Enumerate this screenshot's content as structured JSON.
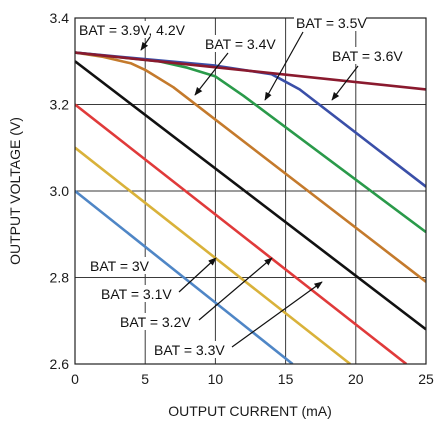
{
  "chart_data": {
    "type": "line",
    "title": "",
    "xlabel": "OUTPUT CURRENT (mA)",
    "ylabel": "OUTPUT VOLTAGE (V)",
    "xlim": [
      0,
      25
    ],
    "ylim": [
      2.6,
      3.4
    ],
    "grid": true,
    "x_ticks": [
      "0",
      "5",
      "10",
      "15",
      "20",
      "25"
    ],
    "y_ticks": [
      "2.6",
      "2.8",
      "3.0",
      "3.2",
      "3.4"
    ],
    "series": [
      {
        "name": "BAT = 3V",
        "color": "#4f86c6",
        "points": [
          [
            0,
            3.0
          ],
          [
            15.5,
            2.6
          ]
        ]
      },
      {
        "name": "BAT = 3.1V",
        "color": "#d9b23a",
        "points": [
          [
            0,
            3.1
          ],
          [
            19.6,
            2.6
          ]
        ]
      },
      {
        "name": "BAT = 3.2V",
        "color": "#e03a3a",
        "points": [
          [
            0,
            3.2
          ],
          [
            23.6,
            2.6
          ]
        ]
      },
      {
        "name": "BAT = 3.3V",
        "color": "#111111",
        "points": [
          [
            0,
            3.3
          ],
          [
            25,
            2.68
          ]
        ]
      },
      {
        "name": "BAT = 3.4V",
        "color": "#c47a2c",
        "points": [
          [
            0,
            3.32
          ],
          [
            2,
            3.31
          ],
          [
            4,
            3.295
          ],
          [
            5,
            3.28
          ],
          [
            7,
            3.24
          ],
          [
            25,
            2.79
          ]
        ]
      },
      {
        "name": "BAT = 3.5V",
        "color": "#2a9a4a",
        "points": [
          [
            0,
            3.32
          ],
          [
            6,
            3.3
          ],
          [
            8,
            3.285
          ],
          [
            10,
            3.265
          ],
          [
            12,
            3.22
          ],
          [
            25,
            2.905
          ]
        ]
      },
      {
        "name": "BAT = 3.6V",
        "color": "#3a4fa8",
        "points": [
          [
            0,
            3.32
          ],
          [
            10,
            3.29
          ],
          [
            14,
            3.27
          ],
          [
            16,
            3.235
          ],
          [
            25,
            3.01
          ]
        ]
      },
      {
        "name": "BAT = 3.9V, 4.2V",
        "color": "#8a1a2e",
        "points": [
          [
            0,
            3.32
          ],
          [
            25,
            3.235
          ]
        ]
      }
    ],
    "annotations": [
      {
        "text": "BAT = 3.9V, 4.2V"
      },
      {
        "text": "BAT = 3.4V"
      },
      {
        "text": "BAT = 3.5V"
      },
      {
        "text": "BAT = 3.6V"
      },
      {
        "text": "BAT = 3V"
      },
      {
        "text": "BAT = 3.1V"
      },
      {
        "text": "BAT = 3.2V"
      },
      {
        "text": "BAT = 3.3V"
      }
    ]
  }
}
